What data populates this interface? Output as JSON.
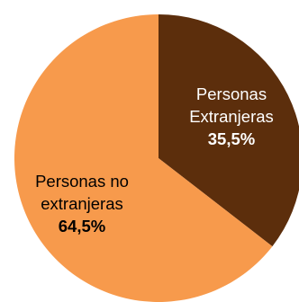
{
  "chart_data": {
    "type": "pie",
    "title": "",
    "slices": [
      {
        "label_lines": [
          "Personas",
          "Extranjeras"
        ],
        "value": 35.5,
        "value_label": "35,5%",
        "color": "#5c2e0c",
        "text_color": "#ffffff"
      },
      {
        "label_lines": [
          "Personas no",
          "extranjeras"
        ],
        "value": 64.5,
        "value_label": "64,5%",
        "color": "#f79a4c",
        "text_color": "#000000"
      }
    ]
  }
}
